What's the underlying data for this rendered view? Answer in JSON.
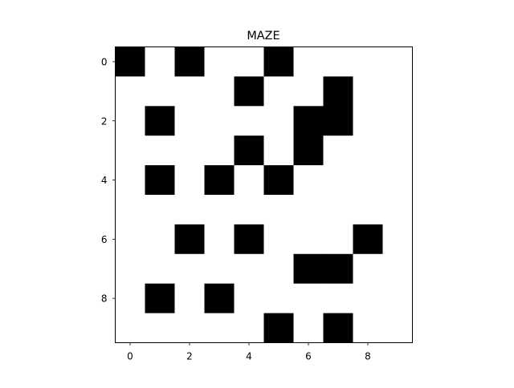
{
  "chart_data": {
    "type": "heatmap",
    "title": "MAZE",
    "xlabel": "",
    "ylabel": "",
    "x_ticks": [
      0,
      2,
      4,
      6,
      8
    ],
    "y_ticks": [
      0,
      2,
      4,
      6,
      8
    ],
    "xlim": [
      -0.5,
      9.5
    ],
    "ylim": [
      9.5,
      -0.5
    ],
    "colormap": {
      "0": "#ffffff",
      "1": "#000000"
    },
    "grid": false,
    "rows": 10,
    "cols": 10,
    "values": [
      [
        1,
        0,
        1,
        0,
        0,
        1,
        0,
        0,
        0,
        0
      ],
      [
        0,
        0,
        0,
        0,
        1,
        0,
        0,
        1,
        0,
        0
      ],
      [
        0,
        1,
        0,
        0,
        0,
        0,
        1,
        1,
        0,
        0
      ],
      [
        0,
        0,
        0,
        0,
        1,
        0,
        1,
        0,
        0,
        0
      ],
      [
        0,
        1,
        0,
        1,
        0,
        1,
        0,
        0,
        0,
        0
      ],
      [
        0,
        0,
        0,
        0,
        0,
        0,
        0,
        0,
        0,
        0
      ],
      [
        0,
        0,
        1,
        0,
        1,
        0,
        0,
        0,
        1,
        0
      ],
      [
        0,
        0,
        0,
        0,
        0,
        0,
        1,
        1,
        0,
        0
      ],
      [
        0,
        1,
        0,
        1,
        0,
        0,
        0,
        0,
        0,
        0
      ],
      [
        0,
        0,
        0,
        0,
        0,
        1,
        0,
        1,
        0,
        0
      ]
    ]
  }
}
